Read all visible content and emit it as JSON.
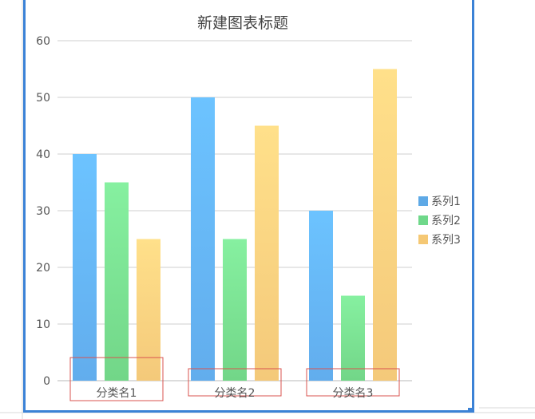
{
  "chart_data": {
    "type": "bar",
    "title": "新建图表标题",
    "categories": [
      "分类名1",
      "分类名2",
      "分类名3"
    ],
    "series": [
      {
        "name": "系列1",
        "values": [
          40,
          50,
          30
        ],
        "color_top": "#6cc3ff",
        "color_bottom": "#62aded"
      },
      {
        "name": "系列2",
        "values": [
          35,
          25,
          15
        ],
        "color_top": "#86f0a0",
        "color_bottom": "#72d688"
      },
      {
        "name": "系列3",
        "values": [
          25,
          45,
          55
        ],
        "color_top": "#ffe08a",
        "color_bottom": "#f4c97a"
      }
    ],
    "ylim": [
      0,
      60
    ],
    "yticks": [
      0,
      10,
      20,
      30,
      40,
      50,
      60
    ],
    "grid": true,
    "legend": "right",
    "legend_colors": [
      "#5ea9e6",
      "#6fd88a",
      "#f5c874"
    ],
    "category_label_box_color": "#d9534f"
  }
}
